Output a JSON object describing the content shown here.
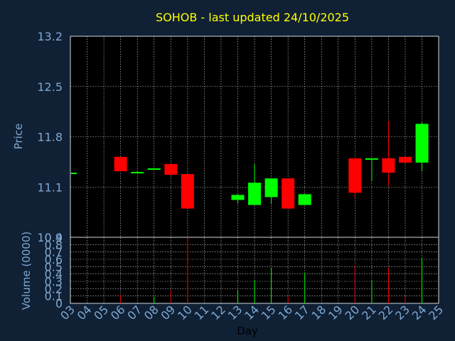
{
  "chart_data": {
    "type": "candlestick",
    "title": "SOHOB - last updated 24/10/2025",
    "xlabel": "Day",
    "ylabel_price": "Price",
    "ylabel_volume": "Volume (0000)",
    "x_ticks": [
      "03",
      "04",
      "05",
      "06",
      "07",
      "08",
      "09",
      "10",
      "11",
      "12",
      "13",
      "14",
      "15",
      "16",
      "17",
      "18",
      "19",
      "20",
      "21",
      "22",
      "23",
      "24",
      "25"
    ],
    "price_ylim": [
      10.4,
      13.2
    ],
    "price_ticks": [
      "10.4",
      "11.1",
      "11.8",
      "12.5",
      "13.2"
    ],
    "volume_ylim": [
      0,
      0.9
    ],
    "volume_ticks": [
      "0",
      "0.1",
      "0.2",
      "0.3",
      "0.4",
      "0.5",
      "0.6",
      "0.7",
      "0.8",
      "0.9"
    ],
    "grid": true,
    "colors": {
      "up": "#00ff00",
      "down": "#ff0000",
      "background": "#102035",
      "plot": "#000000",
      "title": "#ffff00",
      "axis_text": "#7fa8d0"
    },
    "candles": [
      {
        "day": "03",
        "open": 11.3,
        "high": 11.3,
        "low": 11.3,
        "close": 11.3,
        "volume": 0.0
      },
      {
        "day": "06",
        "open": 11.52,
        "high": 11.52,
        "low": 11.32,
        "close": 11.32,
        "volume": 0.12
      },
      {
        "day": "07",
        "open": 11.3,
        "high": 11.32,
        "low": 11.3,
        "close": 11.31,
        "volume": 0.0
      },
      {
        "day": "08",
        "open": 11.36,
        "high": 11.36,
        "low": 11.35,
        "close": 11.36,
        "volume": 0.09
      },
      {
        "day": "09",
        "open": 11.42,
        "high": 11.42,
        "low": 11.27,
        "close": 11.27,
        "volume": 0.18
      },
      {
        "day": "10",
        "open": 11.28,
        "high": 11.28,
        "low": 10.8,
        "close": 10.8,
        "volume": 0.9
      },
      {
        "day": "13",
        "open": 10.92,
        "high": 11.0,
        "low": 10.88,
        "close": 10.99,
        "volume": 0.18
      },
      {
        "day": "14",
        "open": 10.85,
        "high": 11.42,
        "low": 10.85,
        "close": 11.16,
        "volume": 0.32
      },
      {
        "day": "15",
        "open": 10.96,
        "high": 11.22,
        "low": 10.86,
        "close": 11.22,
        "volume": 0.48
      },
      {
        "day": "16",
        "open": 11.22,
        "high": 11.22,
        "low": 10.8,
        "close": 10.8,
        "volume": 0.1
      },
      {
        "day": "17",
        "open": 10.85,
        "high": 11.0,
        "low": 10.85,
        "close": 11.0,
        "volume": 0.42
      },
      {
        "day": "20",
        "open": 11.5,
        "high": 11.5,
        "low": 10.95,
        "close": 11.02,
        "volume": 0.52
      },
      {
        "day": "21",
        "open": 11.48,
        "high": 11.5,
        "low": 11.18,
        "close": 11.5,
        "volume": 0.32
      },
      {
        "day": "22",
        "open": 11.5,
        "high": 12.02,
        "low": 11.12,
        "close": 11.3,
        "volume": 0.48
      },
      {
        "day": "23",
        "open": 11.52,
        "high": 11.52,
        "low": 11.44,
        "close": 11.44,
        "volume": 0.1
      },
      {
        "day": "24",
        "open": 11.44,
        "high": 12.0,
        "low": 11.32,
        "close": 11.98,
        "volume": 0.62
      }
    ]
  }
}
